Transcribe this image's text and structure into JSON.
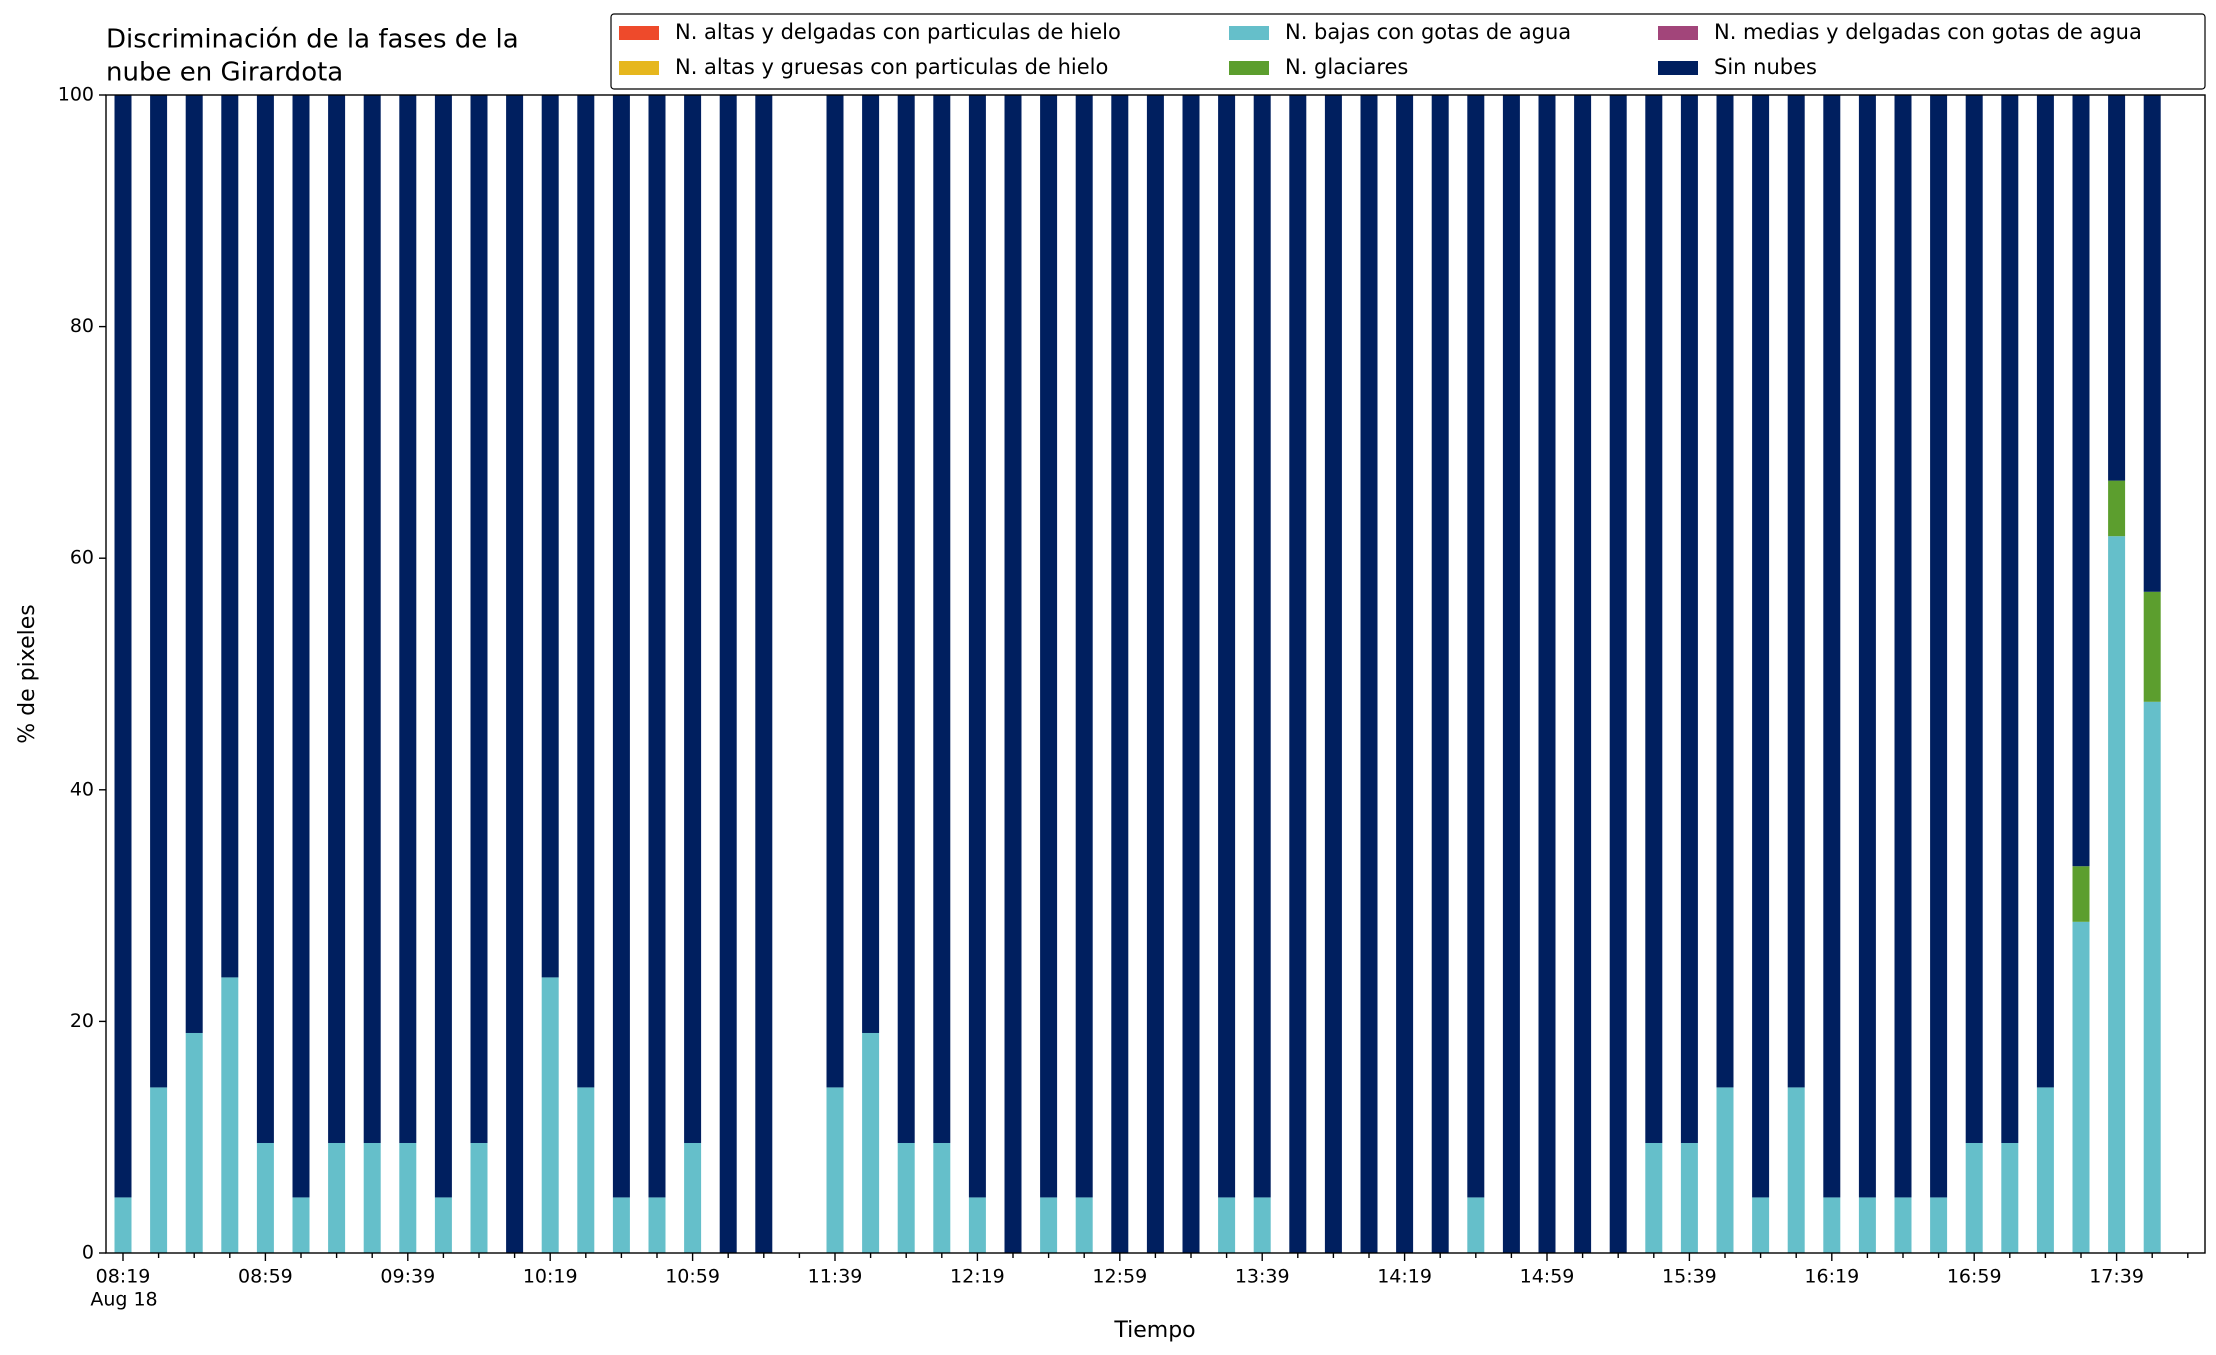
{
  "chart_data": {
    "type": "stacked_bar",
    "title": [
      "Discriminación de la fases de la",
      "nube en Girardota"
    ],
    "xlabel": "Tiempo",
    "ylabel": "% de pixeles",
    "date_label": "Aug 18",
    "categories": [
      "08:19",
      null,
      null,
      null,
      "08:59",
      null,
      null,
      null,
      "09:39",
      null,
      null,
      null,
      "10:19",
      null,
      null,
      null,
      "10:59",
      null,
      null,
      null,
      "11:39",
      null,
      null,
      null,
      "12:19",
      null,
      null,
      null,
      "12:59",
      null,
      null,
      null,
      "13:39",
      null,
      null,
      null,
      "14:19",
      null,
      null,
      null,
      "14:59",
      null,
      null,
      null,
      "15:39",
      null,
      null,
      null,
      "16:19",
      null,
      null,
      null,
      "16:59",
      null,
      null,
      null,
      "17:39",
      null
    ],
    "ylim": [
      0,
      100
    ],
    "yticks": [
      0,
      20,
      40,
      60,
      80,
      100
    ],
    "legend": "top",
    "series": [
      {
        "name": "N. altas y delgadas con particulas de hielo",
        "color": "#ee4a2b",
        "values": [
          0,
          0,
          0,
          0,
          0,
          0,
          0,
          0,
          0,
          0,
          0,
          0,
          0,
          0,
          0,
          0,
          0,
          0,
          0,
          null,
          0,
          0,
          0,
          0,
          0,
          0,
          0,
          0,
          0,
          0,
          0,
          0,
          0,
          0,
          0,
          0,
          0,
          0,
          0,
          0,
          0,
          0,
          0,
          0,
          0,
          0,
          0,
          0,
          0,
          0,
          0,
          0,
          0,
          0,
          0,
          0,
          0,
          0
        ]
      },
      {
        "name": "N. altas y gruesas con particulas de hielo",
        "color": "#e6b71e",
        "values": [
          0,
          0,
          0,
          0,
          0,
          0,
          0,
          0,
          0,
          0,
          0,
          0,
          0,
          0,
          0,
          0,
          0,
          0,
          0,
          null,
          0,
          0,
          0,
          0,
          0,
          0,
          0,
          0,
          0,
          0,
          0,
          0,
          0,
          0,
          0,
          0,
          0,
          0,
          0,
          0,
          0,
          0,
          0,
          0,
          0,
          0,
          0,
          0,
          0,
          0,
          0,
          0,
          0,
          0,
          0,
          0,
          0,
          0
        ]
      },
      {
        "name": "N. bajas con gotas de agua",
        "color": "#65bfca",
        "values": [
          4.8,
          14.3,
          19.0,
          23.8,
          9.5,
          4.8,
          9.5,
          9.5,
          9.5,
          4.8,
          9.5,
          0,
          23.8,
          14.3,
          4.8,
          4.8,
          9.5,
          0,
          0,
          null,
          14.3,
          19.0,
          9.5,
          9.5,
          4.8,
          0,
          4.8,
          4.8,
          0,
          0,
          0,
          4.8,
          4.8,
          0,
          0,
          0,
          0,
          0,
          4.8,
          0,
          0,
          0,
          0,
          9.5,
          9.5,
          14.3,
          4.8,
          14.3,
          4.8,
          4.8,
          4.8,
          4.8,
          9.5,
          9.5,
          14.3,
          28.6,
          61.9,
          47.6
        ]
      },
      {
        "name": "N. glaciares",
        "color": "#5c9e2e",
        "values": [
          0,
          0,
          0,
          0,
          0,
          0,
          0,
          0,
          0,
          0,
          0,
          0,
          0,
          0,
          0,
          0,
          0,
          0,
          0,
          null,
          0,
          0,
          0,
          0,
          0,
          0,
          0,
          0,
          0,
          0,
          0,
          0,
          0,
          0,
          0,
          0,
          0,
          0,
          0,
          0,
          0,
          0,
          0,
          0,
          0,
          0,
          0,
          0,
          0,
          0,
          0,
          0,
          0,
          0,
          0,
          4.8,
          4.8,
          9.5
        ]
      },
      {
        "name": "N. medias y delgadas con gotas de agua",
        "color": "#a2457a",
        "values": [
          0,
          0,
          0,
          0,
          0,
          0,
          0,
          0,
          0,
          0,
          0,
          0,
          0,
          0,
          0,
          0,
          0,
          0,
          0,
          null,
          0,
          0,
          0,
          0,
          0,
          0,
          0,
          0,
          0,
          0,
          0,
          0,
          0,
          0,
          0,
          0,
          0,
          0,
          0,
          0,
          0,
          0,
          0,
          0,
          0,
          0,
          0,
          0,
          0,
          0,
          0,
          0,
          0,
          0,
          0,
          0,
          0,
          0
        ]
      },
      {
        "name": "Sin nubes",
        "color": "#001f5f",
        "values": [
          95.2,
          85.7,
          81.0,
          76.2,
          90.5,
          95.2,
          90.5,
          90.5,
          90.5,
          95.2,
          90.5,
          100,
          76.2,
          85.7,
          95.2,
          95.2,
          90.5,
          100,
          100,
          null,
          85.7,
          81.0,
          90.5,
          90.5,
          95.2,
          100,
          95.2,
          95.2,
          100,
          100,
          100,
          95.2,
          95.2,
          100,
          100,
          100,
          100,
          100,
          95.2,
          100,
          100,
          100,
          100,
          90.5,
          90.5,
          85.7,
          95.2,
          85.7,
          95.2,
          95.2,
          95.2,
          95.2,
          90.5,
          90.5,
          85.7,
          66.6,
          33.3,
          42.9
        ]
      }
    ]
  }
}
